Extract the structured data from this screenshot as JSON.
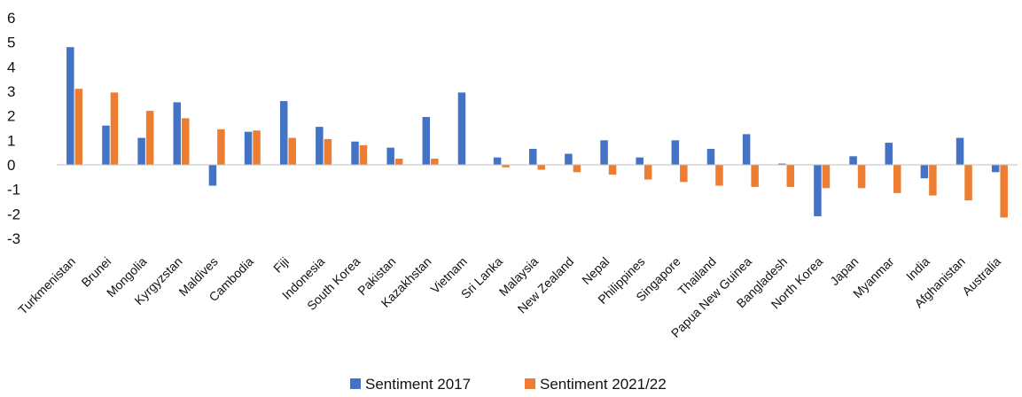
{
  "chart_data": {
    "type": "bar",
    "title": "",
    "xlabel": "",
    "ylabel": "",
    "ylim": [
      -3,
      6
    ],
    "yticks": [
      -3,
      -2,
      -1,
      0,
      1,
      2,
      3,
      4,
      5,
      6
    ],
    "grid": false,
    "legend_position": "bottom",
    "categories": [
      "Turkmenistan",
      "Brunei",
      "Mongolia",
      "Kyrgyzstan",
      "Maldives",
      "Cambodia",
      "Fiji",
      "Indonesia",
      "South Korea",
      "Pakistan",
      "Kazakhstan",
      "Vietnam",
      "Sri Lanka",
      "Malaysia",
      "New Zealand",
      "Nepal",
      "Philippines",
      "Singapore",
      "Thailand",
      "Papua New Guinea",
      "Bangladesh",
      "North Korea",
      "Japan",
      "Myanmar",
      "India",
      "Afghanistan",
      "Australia"
    ],
    "series": [
      {
        "name": "Sentiment 2017",
        "color": "#4472C4",
        "values": [
          4.8,
          1.6,
          1.1,
          2.55,
          -0.85,
          1.35,
          2.6,
          1.55,
          0.95,
          0.7,
          1.95,
          2.95,
          0.3,
          0.65,
          0.45,
          1.0,
          0.3,
          1.0,
          0.65,
          1.25,
          0.05,
          -2.1,
          0.35,
          0.9,
          -0.55,
          1.1,
          -0.3
        ]
      },
      {
        "name": "Sentiment 2021/22",
        "color": "#ED7D31",
        "values": [
          3.1,
          2.95,
          2.2,
          1.9,
          1.45,
          1.4,
          1.1,
          1.05,
          0.8,
          0.25,
          0.25,
          0,
          -0.1,
          -0.2,
          -0.3,
          -0.4,
          -0.6,
          -0.7,
          -0.85,
          -0.9,
          -0.9,
          -0.95,
          -0.95,
          -1.15,
          -1.25,
          -1.45,
          -2.15
        ]
      }
    ]
  }
}
